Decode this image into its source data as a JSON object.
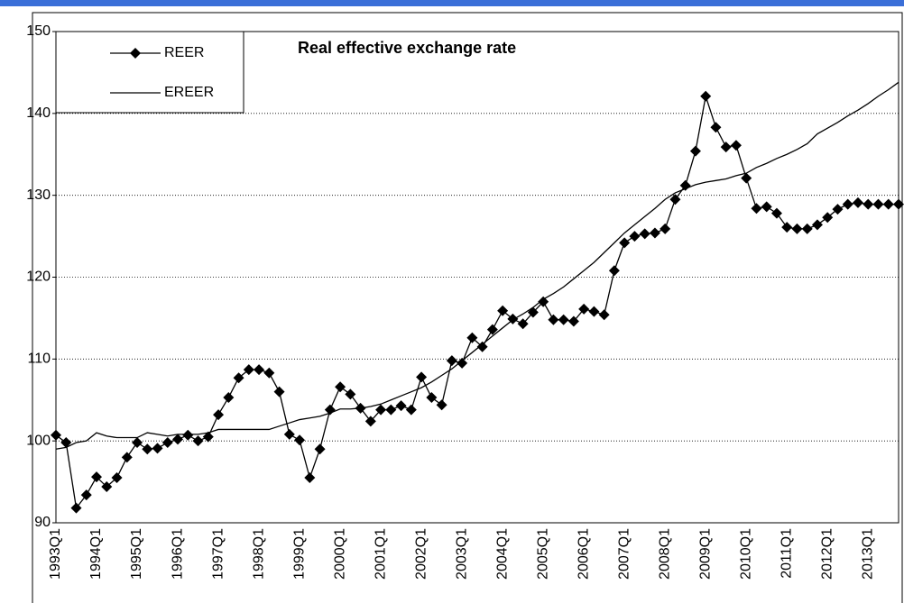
{
  "chart_data": {
    "type": "line",
    "title": "Real effective exchange rate",
    "categories": [
      "1993Q1",
      null,
      null,
      null,
      "1994Q1",
      null,
      null,
      null,
      "1995Q1",
      null,
      null,
      null,
      "1996Q1",
      null,
      null,
      null,
      "1997Q1",
      null,
      null,
      null,
      "1998Q1",
      null,
      null,
      null,
      "1999Q1",
      null,
      null,
      null,
      "2000Q1",
      null,
      null,
      null,
      "2001Q1",
      null,
      null,
      null,
      "2002Q1",
      null,
      null,
      null,
      "2003Q1",
      null,
      null,
      null,
      "2004Q1",
      null,
      null,
      null,
      "2005Q1",
      null,
      null,
      null,
      "2006Q1",
      null,
      null,
      null,
      "2007Q1",
      null,
      null,
      null,
      "2008Q1",
      null,
      null,
      null,
      "2009Q1",
      null,
      null,
      null,
      "2010Q1",
      null,
      null,
      null,
      "2011Q1",
      null,
      null,
      null,
      "2012Q1",
      null,
      null,
      null,
      "2013Q1",
      null,
      null,
      null
    ],
    "series": [
      {
        "name": "REER",
        "color": "#000000",
        "marker": "diamond",
        "values": [
          100.7,
          99.8,
          91.8,
          93.4,
          95.6,
          94.4,
          95.5,
          98.0,
          99.8,
          99.0,
          99.1,
          99.8,
          100.2,
          100.7,
          100.0,
          100.5,
          103.2,
          105.3,
          107.7,
          108.7,
          108.7,
          108.3,
          106.0,
          100.8,
          100.1,
          95.5,
          99.0,
          103.8,
          106.6,
          105.7,
          104.0,
          102.4,
          103.8,
          103.8,
          104.3,
          103.8,
          107.8,
          105.3,
          104.4,
          109.8,
          109.5,
          112.6,
          111.5,
          113.6,
          115.9,
          114.9,
          114.3,
          115.7,
          117.0,
          114.8,
          114.8,
          114.6,
          116.1,
          115.8,
          115.4,
          120.8,
          124.2,
          125.0,
          125.3,
          125.4,
          125.9,
          129.5,
          131.2,
          135.4,
          142.1,
          138.3,
          135.9,
          136.1,
          132.1,
          128.4,
          128.6,
          127.8,
          126.1,
          125.9,
          125.9,
          126.4,
          127.3,
          128.3,
          128.9,
          129.1,
          128.9,
          128.9,
          128.9,
          128.9
        ]
      },
      {
        "name": "EREER",
        "color": "#000000",
        "marker": "none",
        "values": [
          99.0,
          99.2,
          99.8,
          100.0,
          101.0,
          100.6,
          100.4,
          100.4,
          100.4,
          101.0,
          100.8,
          100.6,
          100.8,
          100.8,
          100.8,
          101.0,
          101.4,
          101.4,
          101.4,
          101.4,
          101.4,
          101.4,
          101.8,
          102.2,
          102.6,
          102.8,
          103.0,
          103.4,
          103.9,
          103.9,
          104.0,
          104.2,
          104.5,
          105.0,
          105.5,
          106.0,
          106.5,
          107.2,
          108.0,
          108.8,
          109.8,
          110.8,
          111.8,
          112.8,
          113.8,
          114.8,
          115.5,
          116.3,
          117.3,
          118.0,
          118.8,
          119.8,
          120.8,
          121.8,
          123.0,
          124.2,
          125.4,
          126.4,
          127.4,
          128.4,
          129.5,
          130.3,
          130.8,
          131.3,
          131.6,
          131.8,
          132.0,
          132.4,
          132.7,
          133.4,
          133.9,
          134.5,
          135.0,
          135.6,
          136.3,
          137.5,
          138.2,
          138.9,
          139.7,
          140.4,
          141.2,
          142.1,
          142.9,
          143.8
        ]
      }
    ],
    "ylim": [
      90,
      150
    ],
    "yticks": [
      90,
      100,
      110,
      120,
      130,
      140,
      150
    ],
    "grid": true,
    "legend": "upper left"
  }
}
